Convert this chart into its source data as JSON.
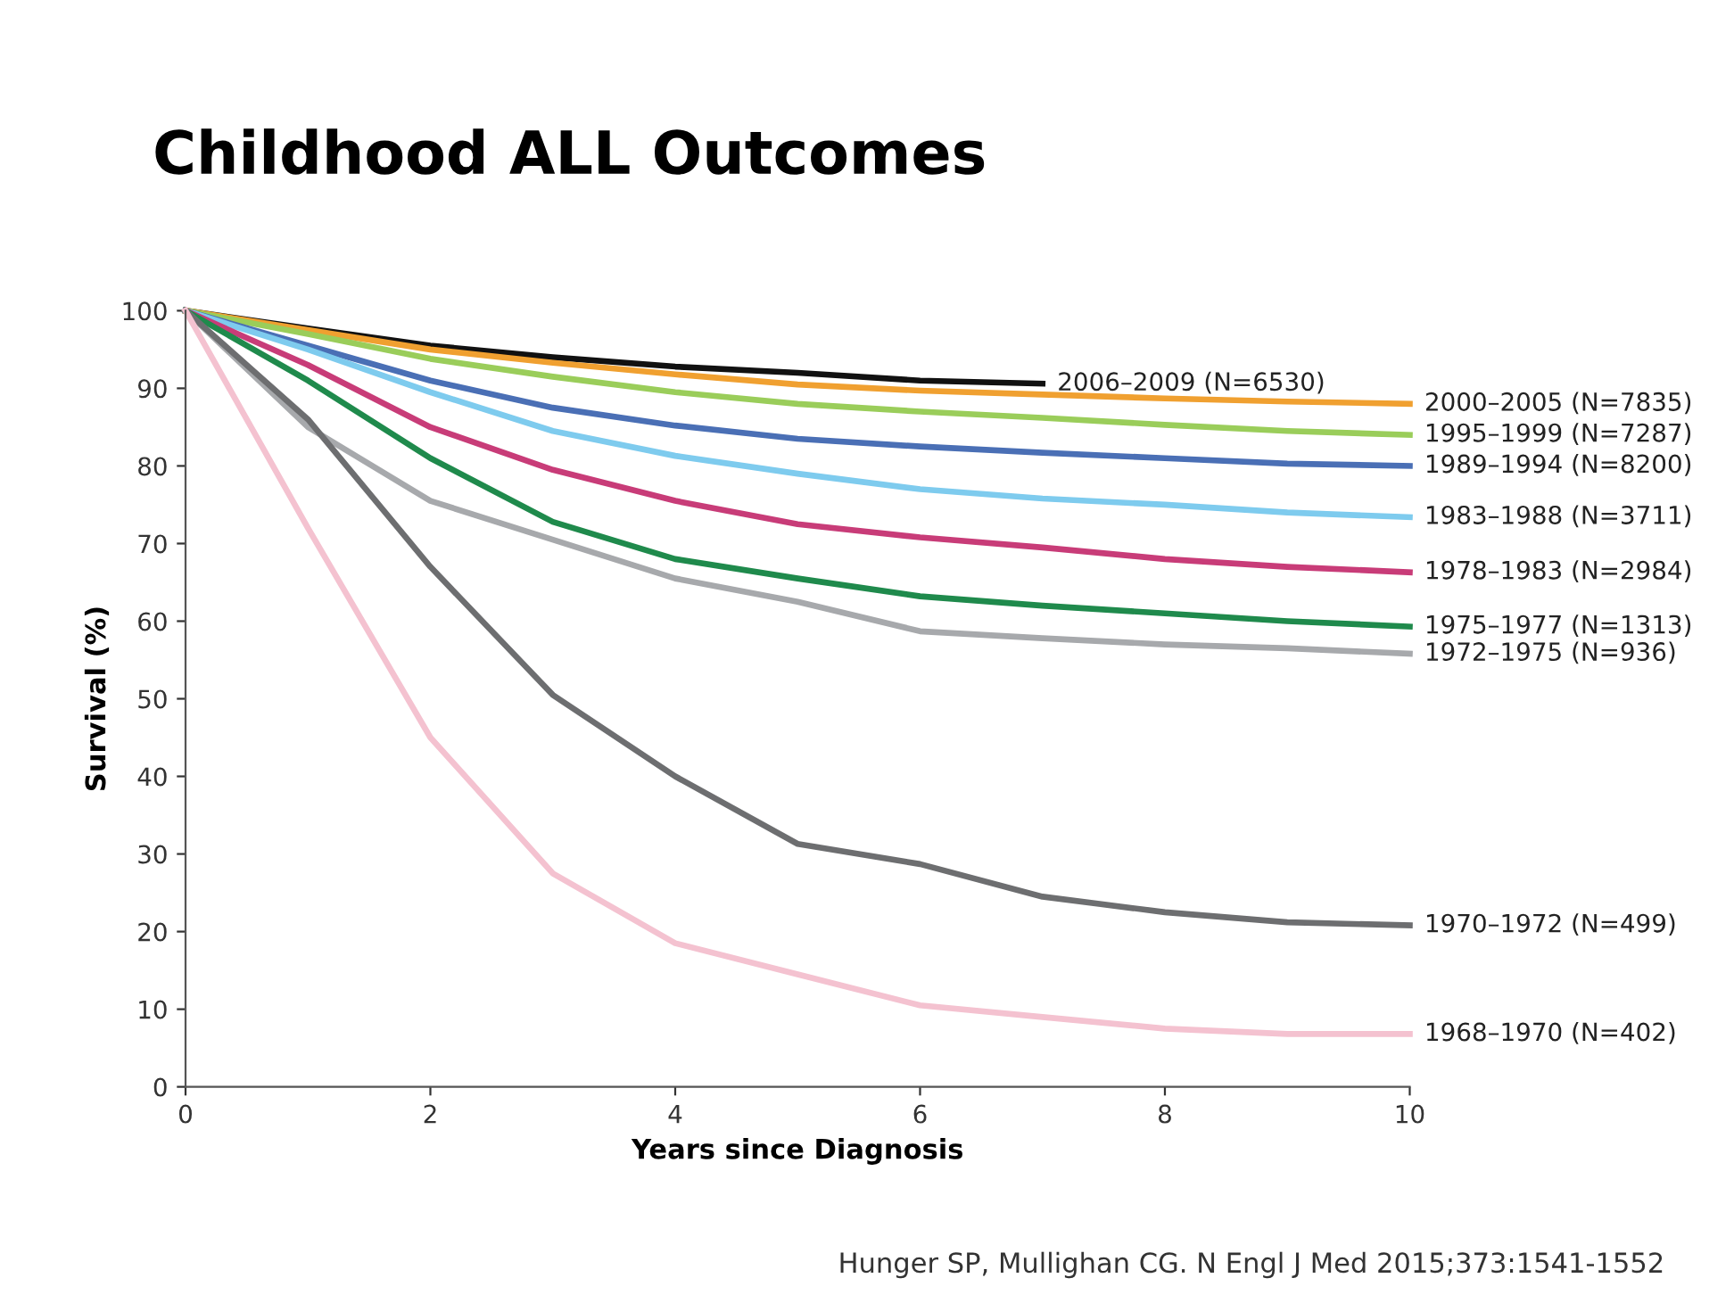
{
  "chart_data": {
    "type": "line",
    "title": "Childhood ALL Outcomes",
    "xlabel": "Years since Diagnosis",
    "ylabel": "Survival (%)",
    "x": [
      0,
      1,
      2,
      3,
      4,
      5,
      6,
      7,
      8,
      9,
      10
    ],
    "series": [
      {
        "name": "2006–2009 (N=6530)",
        "color": "#111111",
        "values": [
          100,
          97.7,
          95.5,
          94,
          92.8,
          92,
          91,
          90.6,
          null,
          null,
          null
        ]
      },
      {
        "name": "2000–2005 (N=7835)",
        "color": "#f0a030",
        "values": [
          100,
          97.5,
          95,
          93.3,
          91.8,
          90.5,
          89.7,
          89.2,
          88.7,
          88.3,
          88
        ]
      },
      {
        "name": "1995–1999 (N=7287)",
        "color": "#9acd5a",
        "values": [
          100,
          97,
          93.8,
          91.5,
          89.5,
          88,
          87,
          86.2,
          85.3,
          84.5,
          84
        ]
      },
      {
        "name": "1989–1994 (N=8200)",
        "color": "#4a6fb5",
        "values": [
          100,
          95.5,
          91,
          87.5,
          85.2,
          83.5,
          82.5,
          81.7,
          81,
          80.3,
          80
        ]
      },
      {
        "name": "1983–1988 (N=3711)",
        "color": "#7ecbee",
        "values": [
          100,
          95,
          89.5,
          84.5,
          81.3,
          79,
          77,
          75.8,
          75,
          74,
          73.4
        ]
      },
      {
        "name": "1978–1983 (N=2984)",
        "color": "#c83c78",
        "values": [
          100,
          93,
          85,
          79.5,
          75.5,
          72.5,
          70.8,
          69.5,
          68,
          67,
          66.3
        ]
      },
      {
        "name": "1975–1977 (N=1313)",
        "color": "#1f8a4c",
        "values": [
          100,
          91,
          81,
          72.8,
          68,
          65.5,
          63.2,
          62,
          61,
          60,
          59.3
        ]
      },
      {
        "name": "1972–1975 (N=936)",
        "color": "#a7a9ac",
        "values": [
          100,
          85,
          75.5,
          70.5,
          65.5,
          62.5,
          58.7,
          57.8,
          57,
          56.5,
          55.8
        ]
      },
      {
        "name": "1970–1972 (N=499)",
        "color": "#6d6e70",
        "values": [
          100,
          86,
          67,
          50.5,
          40,
          31.3,
          28.7,
          24.5,
          22.5,
          21.2,
          20.8
        ]
      },
      {
        "name": "1968–1970 (N=402)",
        "color": "#f4c2d0",
        "values": [
          100,
          72,
          45,
          27.5,
          18.5,
          14.5,
          10.5,
          9,
          7.5,
          6.8,
          6.8
        ]
      }
    ],
    "xlim": [
      0,
      10
    ],
    "xticks": [
      0,
      2,
      4,
      6,
      8,
      10
    ],
    "ylim": [
      0,
      100
    ],
    "yticks": [
      0,
      10,
      20,
      30,
      40,
      50,
      60,
      70,
      80,
      90,
      100
    ],
    "grid": false,
    "legend": false,
    "marker": "none",
    "line_style": "solid",
    "annotations": [
      "Hunger SP, Mullighan CG. N Engl J Med 2015;373:1541-1552"
    ]
  }
}
